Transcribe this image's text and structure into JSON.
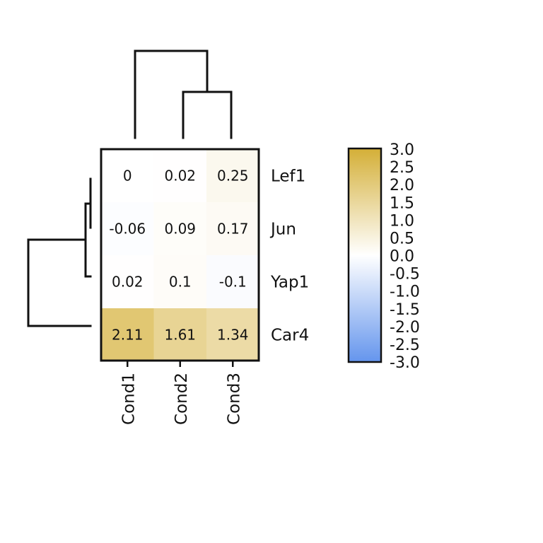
{
  "chart_data": {
    "type": "heatmap",
    "rows": [
      "Lef1",
      "Jun",
      "Yap1",
      "Car4"
    ],
    "columns": [
      "Cond1",
      "Cond2",
      "Cond3"
    ],
    "values": [
      [
        0,
        0.02,
        0.25
      ],
      [
        -0.06,
        0.09,
        0.17
      ],
      [
        0.02,
        0.1,
        -0.1
      ],
      [
        2.11,
        1.61,
        1.34
      ]
    ],
    "cell_labels": [
      [
        "0",
        "0.02",
        "0.25"
      ],
      [
        "-0.06",
        "0.09",
        "0.17"
      ],
      [
        "0.02",
        "0.1",
        "-0.1"
      ],
      [
        "2.11",
        "1.61",
        "1.34"
      ]
    ],
    "color_scale": {
      "min": -3.0,
      "max": 3.0,
      "low_color": "#6495ed",
      "mid_color": "#ffffff",
      "high_color": "#d4af37",
      "ticks": [
        "3.0",
        "2.5",
        "2.0",
        "1.5",
        "1.0",
        "0.5",
        "0.0",
        "-0.5",
        "-1.0",
        "-1.5",
        "-2.0",
        "-2.5",
        "-3.0"
      ]
    },
    "row_dendrogram": true,
    "column_dendrogram": true,
    "legend_position": "right"
  }
}
